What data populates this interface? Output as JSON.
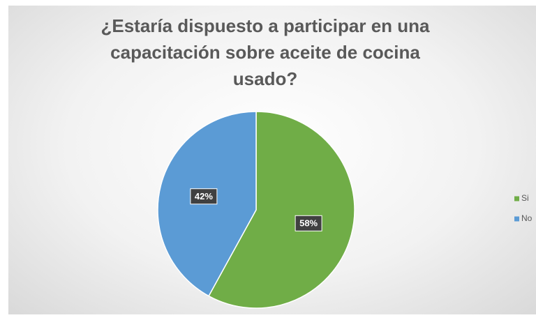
{
  "chart_data": {
    "type": "pie",
    "title": "¿Estaría dispuesto a participar en una capacitación sobre aceite de cocina usado?",
    "categories": [
      "Si",
      "No"
    ],
    "values": [
      58,
      42
    ],
    "value_labels": [
      "58%",
      "42%"
    ],
    "colors": [
      "#70ad47",
      "#5b9bd5"
    ],
    "legend": "right"
  }
}
